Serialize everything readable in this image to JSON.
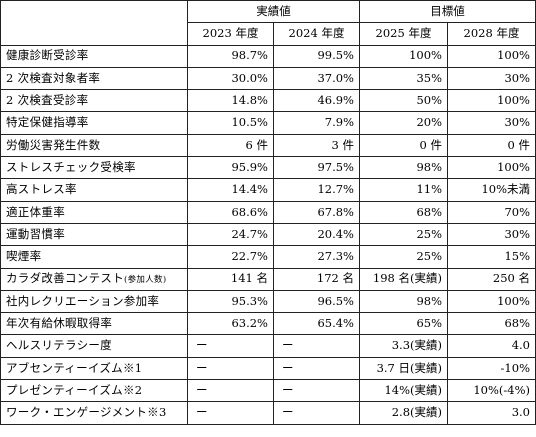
{
  "headers": {
    "group_actual": "実績値",
    "group_target": "目標値",
    "years": [
      "2023 年度",
      "2024 年度",
      "2025 年度",
      "2028 年度"
    ]
  },
  "rows": [
    {
      "label": "健康診断受診率",
      "values": [
        "98.7%",
        "99.5%",
        "100%",
        "100%"
      ]
    },
    {
      "label": "2 次検査対象者率",
      "values": [
        "30.0%",
        "37.0%",
        "35%",
        "30%"
      ]
    },
    {
      "label": "2 次検査受診率",
      "values": [
        "14.8%",
        "46.9%",
        "50%",
        "100%"
      ]
    },
    {
      "label": "特定保健指導率",
      "values": [
        "10.5%",
        "7.9%",
        "20%",
        "30%"
      ]
    },
    {
      "label": "労働災害発生件数",
      "values": [
        "6 件",
        "3 件",
        "0 件",
        "0 件"
      ]
    },
    {
      "label": "ストレスチェック受検率",
      "values": [
        "95.9%",
        "97.5%",
        "98%",
        "100%"
      ]
    },
    {
      "label": "高ストレス率",
      "values": [
        "14.4%",
        "12.7%",
        "11%",
        "10%未満"
      ]
    },
    {
      "label": "適正体重率",
      "values": [
        "68.6%",
        "67.8%",
        "68%",
        "70%"
      ]
    },
    {
      "label": "運動習慣率",
      "values": [
        "24.7%",
        "20.4%",
        "25%",
        "30%"
      ]
    },
    {
      "label": "喫煙率",
      "values": [
        "22.7%",
        "27.3%",
        "25%",
        "15%"
      ]
    },
    {
      "label": "カラダ改善コンテスト",
      "label_note": "(参加人数)",
      "values": [
        "141 名",
        "172 名",
        "198 名(実績)",
        "250 名"
      ]
    },
    {
      "label": "社内レクリエーション参加率",
      "values": [
        "95.3%",
        "96.5%",
        "98%",
        "100%"
      ]
    },
    {
      "label": "年次有給休暇取得率",
      "values": [
        "63.2%",
        "65.4%",
        "65%",
        "68%"
      ]
    },
    {
      "label": "ヘルスリテラシー度",
      "values": [
        "ー",
        "ー",
        "3.3(実績)",
        "4.0"
      ]
    },
    {
      "label": "アブセンティーイズム※1",
      "values": [
        "ー",
        "ー",
        "3.7 日(実績)",
        "-10%"
      ]
    },
    {
      "label": "プレゼンティーイズム※2",
      "values": [
        "ー",
        "ー",
        "14%(実績)",
        "10%(-4%)"
      ]
    },
    {
      "label": "ワーク・エンゲージメント※3",
      "values": [
        "ー",
        "ー",
        "2.8(実績)",
        "3.0"
      ]
    }
  ]
}
